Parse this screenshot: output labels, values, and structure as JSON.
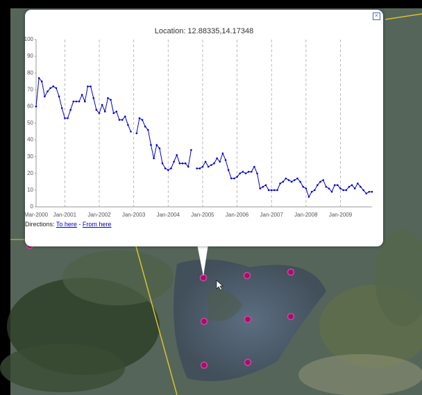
{
  "chart_data": {
    "type": "line",
    "title": "Location: 12.88335,14.17348",
    "x": [
      "2000-03",
      "2000-04",
      "2000-05",
      "2000-06",
      "2000-07",
      "2000-08",
      "2000-09",
      "2000-10",
      "2000-11",
      "2000-12",
      "2001-01",
      "2001-02",
      "2001-03",
      "2001-04",
      "2001-05",
      "2001-06",
      "2001-07",
      "2001-08",
      "2001-09",
      "2001-10",
      "2001-11",
      "2001-12",
      "2002-01",
      "2002-02",
      "2002-03",
      "2002-04",
      "2002-05",
      "2002-06",
      "2002-07",
      "2002-08",
      "2002-09",
      "2002-10",
      "2002-11",
      "2002-12",
      "2003-01",
      "2003-02",
      "2003-03",
      "2003-04",
      "2003-05",
      "2003-06",
      "2003-07",
      "2003-08",
      "2003-09",
      "2003-10",
      "2003-11",
      "2003-12",
      "2004-01",
      "2004-02",
      "2004-03",
      "2004-04",
      "2004-05",
      "2004-06",
      "2004-07",
      "2004-08",
      "2004-09",
      "2004-10",
      "2004-11",
      "2004-12",
      "2005-01",
      "2005-02",
      "2005-03",
      "2005-04",
      "2005-05",
      "2005-06",
      "2005-07",
      "2005-08",
      "2005-09",
      "2005-10",
      "2005-11",
      "2005-12",
      "2006-01",
      "2006-02",
      "2006-03",
      "2006-04",
      "2006-05",
      "2006-06",
      "2006-07",
      "2006-08",
      "2006-09",
      "2006-10",
      "2006-11",
      "2006-12",
      "2007-01",
      "2007-02",
      "2007-03",
      "2007-04",
      "2007-05",
      "2007-06",
      "2007-07",
      "2007-08",
      "2007-09",
      "2007-10",
      "2007-11",
      "2007-12",
      "2008-01",
      "2008-02",
      "2008-03",
      "2008-04",
      "2008-05",
      "2008-06",
      "2008-07",
      "2008-08",
      "2008-09",
      "2008-10",
      "2008-11",
      "2008-12",
      "2009-01",
      "2009-02",
      "2009-03",
      "2009-04",
      "2009-05",
      "2009-06",
      "2009-07",
      "2009-08",
      "2009-09",
      "2009-10",
      "2009-11",
      "2009-12"
    ],
    "series": [
      {
        "color": "#0000cc",
        "values": [
          60,
          77,
          75,
          66,
          69,
          71,
          72,
          71,
          66,
          59,
          53,
          53,
          58,
          63,
          63,
          63,
          67,
          63,
          72,
          72,
          65,
          58,
          56,
          61,
          57,
          65,
          64,
          56,
          57,
          52,
          52,
          54,
          49,
          45,
          null,
          44,
          53,
          52,
          48,
          46,
          37,
          29,
          37,
          35,
          26,
          23,
          22,
          23,
          27,
          31,
          26,
          26,
          26,
          24,
          34,
          null,
          23,
          23,
          24,
          27,
          24,
          25,
          26,
          29,
          27,
          32,
          28,
          22,
          17,
          17,
          18,
          20,
          21,
          20,
          21,
          21,
          24,
          20,
          11,
          12,
          13,
          10,
          10,
          10,
          10,
          14,
          15,
          17,
          16,
          15,
          16,
          17,
          15,
          12,
          11,
          6,
          9,
          10,
          13,
          15,
          16,
          12,
          11,
          9,
          13,
          13,
          11,
          10,
          10,
          12,
          13,
          11,
          14,
          12,
          10,
          8,
          9,
          9
        ]
      }
    ],
    "xlim": [
      "2000-03",
      "2009-12"
    ],
    "xticks": [
      {
        "value": "2000-03",
        "label": "Mar-2000"
      },
      {
        "value": "2001-01",
        "label": "Jan-2001"
      },
      {
        "value": "2002-01",
        "label": "Jan-2002"
      },
      {
        "value": "2003-01",
        "label": "Jan-2003"
      },
      {
        "value": "2004-01",
        "label": "Jan-2004"
      },
      {
        "value": "2005-01",
        "label": "Jan-2005"
      },
      {
        "value": "2006-01",
        "label": "Jan-2006"
      },
      {
        "value": "2007-01",
        "label": "Jan-2007"
      },
      {
        "value": "2008-01",
        "label": "Jan-2008"
      },
      {
        "value": "2009-01",
        "label": "Jan-2009"
      }
    ],
    "ylim": [
      0,
      100
    ],
    "yticks": [
      0,
      10,
      20,
      30,
      40,
      50,
      60,
      70,
      80,
      90,
      100
    ],
    "grid": true
  },
  "directions": {
    "label": "Directions:",
    "to_here": "To here",
    "separator": "-",
    "from_here": "From here"
  }
}
